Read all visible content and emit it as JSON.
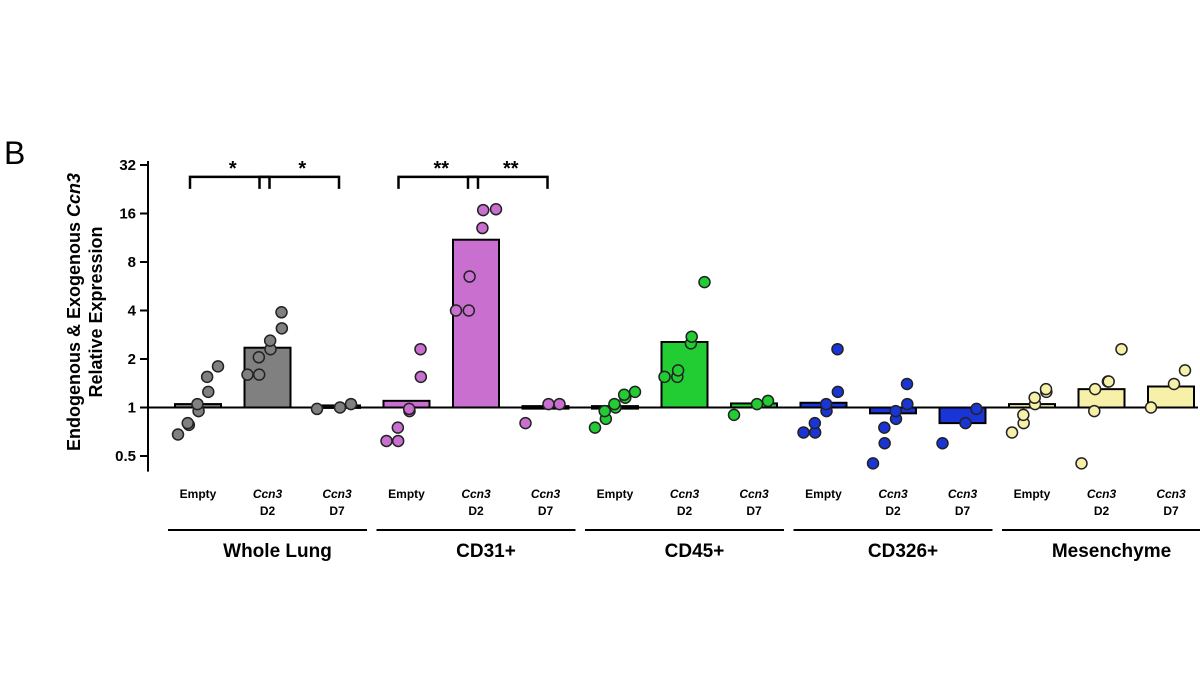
{
  "panel_label": "B",
  "chart_data": {
    "type": "bar",
    "ylabel_line1_prefix": "Endogenous & Exogenous ",
    "ylabel_line1_gene": "Ccn3",
    "ylabel_line2": "Relative Expression",
    "y_scale": "log2",
    "ylim": [
      0.4,
      32
    ],
    "y_ticks": [
      0.5,
      1,
      2,
      4,
      8,
      16,
      32
    ],
    "y_tick_labels": [
      "0.5",
      "1",
      "2",
      "4",
      "8",
      "16",
      "32"
    ],
    "baseline": 1,
    "groups": [
      {
        "name": "Whole Lung",
        "color": "#808080",
        "categories": [
          {
            "line1": "Empty",
            "line2": "",
            "italic": false,
            "bar": 1.05,
            "points": [
              0.68,
              0.78,
              0.8,
              0.95,
              1.05,
              1.25,
              1.55,
              1.8
            ]
          },
          {
            "line1": "Ccn3",
            "line2": "D2",
            "italic": true,
            "bar": 2.35,
            "points": [
              1.6,
              1.6,
              2.05,
              2.3,
              2.6,
              3.1,
              3.9
            ]
          },
          {
            "line1": "Ccn3",
            "line2": "D7",
            "italic": true,
            "bar": 1.03,
            "points": [
              0.98,
              1.0,
              1.05
            ]
          }
        ]
      },
      {
        "name": "CD31+",
        "color": "#c86fd0",
        "categories": [
          {
            "line1": "Empty",
            "line2": "",
            "italic": false,
            "bar": 1.1,
            "points": [
              0.62,
              0.62,
              0.75,
              0.95,
              0.98,
              1.55,
              2.3
            ]
          },
          {
            "line1": "Ccn3",
            "line2": "D2",
            "italic": true,
            "bar": 11.0,
            "points": [
              4.0,
              4.0,
              6.5,
              13.0,
              16.8,
              17.0
            ]
          },
          {
            "line1": "Ccn3",
            "line2": "D7",
            "italic": true,
            "bar": 1.02,
            "points": [
              0.8,
              1.05,
              1.05
            ]
          }
        ]
      },
      {
        "name": "CD45+",
        "color": "#22cc33",
        "categories": [
          {
            "line1": "Empty",
            "line2": "",
            "italic": false,
            "bar": 1.02,
            "points": [
              0.75,
              0.85,
              0.95,
              1.0,
              1.05,
              1.15,
              1.2,
              1.25
            ]
          },
          {
            "line1": "Ccn3",
            "line2": "D2",
            "italic": true,
            "bar": 2.55,
            "points": [
              1.55,
              1.55,
              1.7,
              2.5,
              2.75,
              6.0
            ]
          },
          {
            "line1": "Ccn3",
            "line2": "D7",
            "italic": true,
            "bar": 1.06,
            "points": [
              0.9,
              1.05,
              1.1
            ]
          }
        ]
      },
      {
        "name": "CD326+",
        "color": "#1a35d6",
        "categories": [
          {
            "line1": "Empty",
            "line2": "",
            "italic": false,
            "bar": 1.07,
            "points": [
              0.7,
              0.7,
              0.8,
              0.95,
              1.05,
              1.25,
              2.3
            ]
          },
          {
            "line1": "Ccn3",
            "line2": "D2",
            "italic": true,
            "bar": 0.92,
            "points": [
              0.45,
              0.6,
              0.75,
              0.85,
              0.95,
              1.05,
              1.4
            ]
          },
          {
            "line1": "Ccn3",
            "line2": "D7",
            "italic": true,
            "bar": 0.8,
            "points": [
              0.6,
              0.8,
              0.98
            ]
          }
        ]
      },
      {
        "name": "Mesenchyme",
        "color": "#f6f0a8",
        "categories": [
          {
            "line1": "Empty",
            "line2": "",
            "italic": false,
            "bar": 1.05,
            "points": [
              0.7,
              0.8,
              0.9,
              1.05,
              1.15,
              1.25,
              1.3
            ]
          },
          {
            "line1": "Ccn3",
            "line2": "D2",
            "italic": true,
            "bar": 1.3,
            "points": [
              0.45,
              0.95,
              1.3,
              1.45,
              1.45,
              2.3
            ]
          },
          {
            "line1": "Ccn3",
            "line2": "D7",
            "italic": true,
            "bar": 1.35,
            "points": [
              1.0,
              1.4,
              1.7
            ]
          }
        ]
      }
    ],
    "significance": [
      {
        "from": [
          0,
          0
        ],
        "to": [
          0,
          1
        ],
        "label": "*",
        "y": 27
      },
      {
        "from": [
          0,
          1
        ],
        "to": [
          0,
          2
        ],
        "label": "*",
        "y": 27
      },
      {
        "from": [
          1,
          0
        ],
        "to": [
          1,
          1
        ],
        "label": "**",
        "y": 27
      },
      {
        "from": [
          1,
          1
        ],
        "to": [
          1,
          2
        ],
        "label": "**",
        "y": 27
      }
    ]
  }
}
